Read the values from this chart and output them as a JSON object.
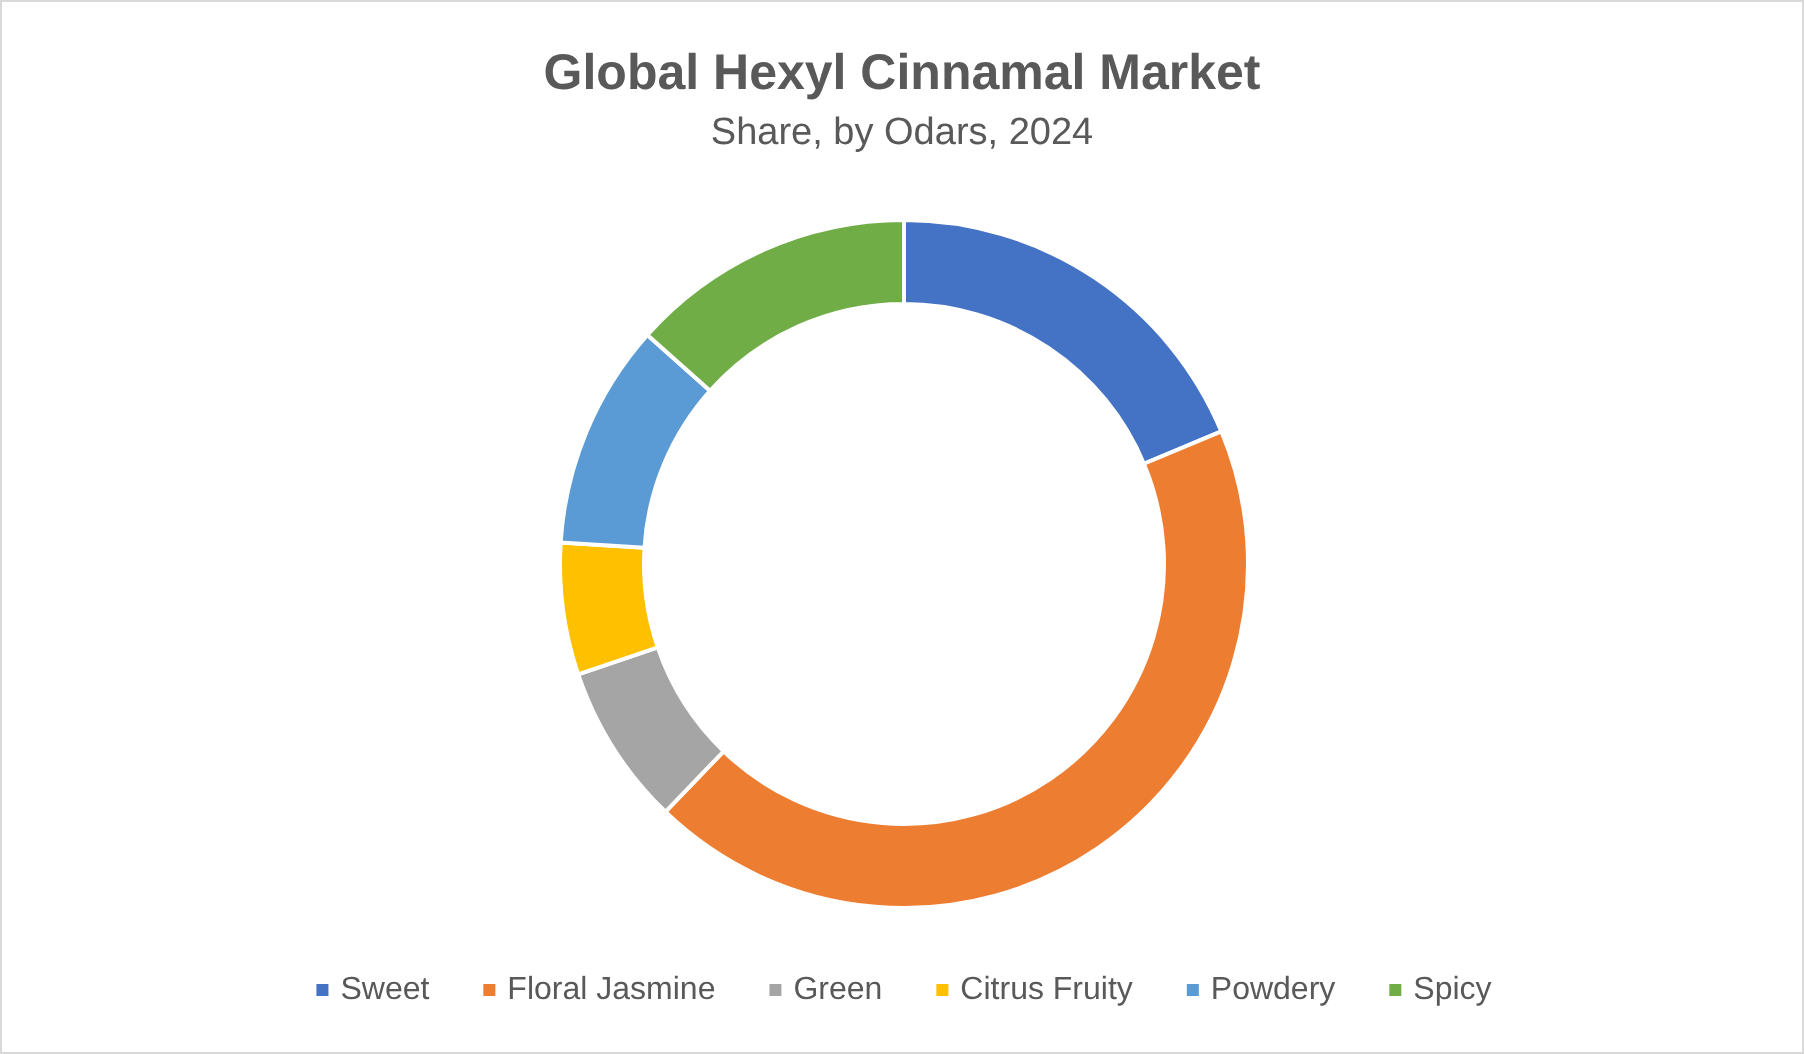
{
  "chart_data": {
    "type": "donut",
    "title": "Global Hexyl Cinnamal Market",
    "subtitle": "Share, by Odars, 2024",
    "categories": [
      "Sweet",
      "Floral Jasmine",
      "Green",
      "Citrus Fruity",
      "Powdery",
      "Spicy"
    ],
    "values": [
      18.7,
      43.5,
      7.6,
      6.2,
      10.6,
      13.4
    ],
    "colors": [
      "#4472c4",
      "#ed7d31",
      "#a5a5a5",
      "#ffc000",
      "#5b9bd5",
      "#70ad47"
    ],
    "legend": "bottom"
  }
}
